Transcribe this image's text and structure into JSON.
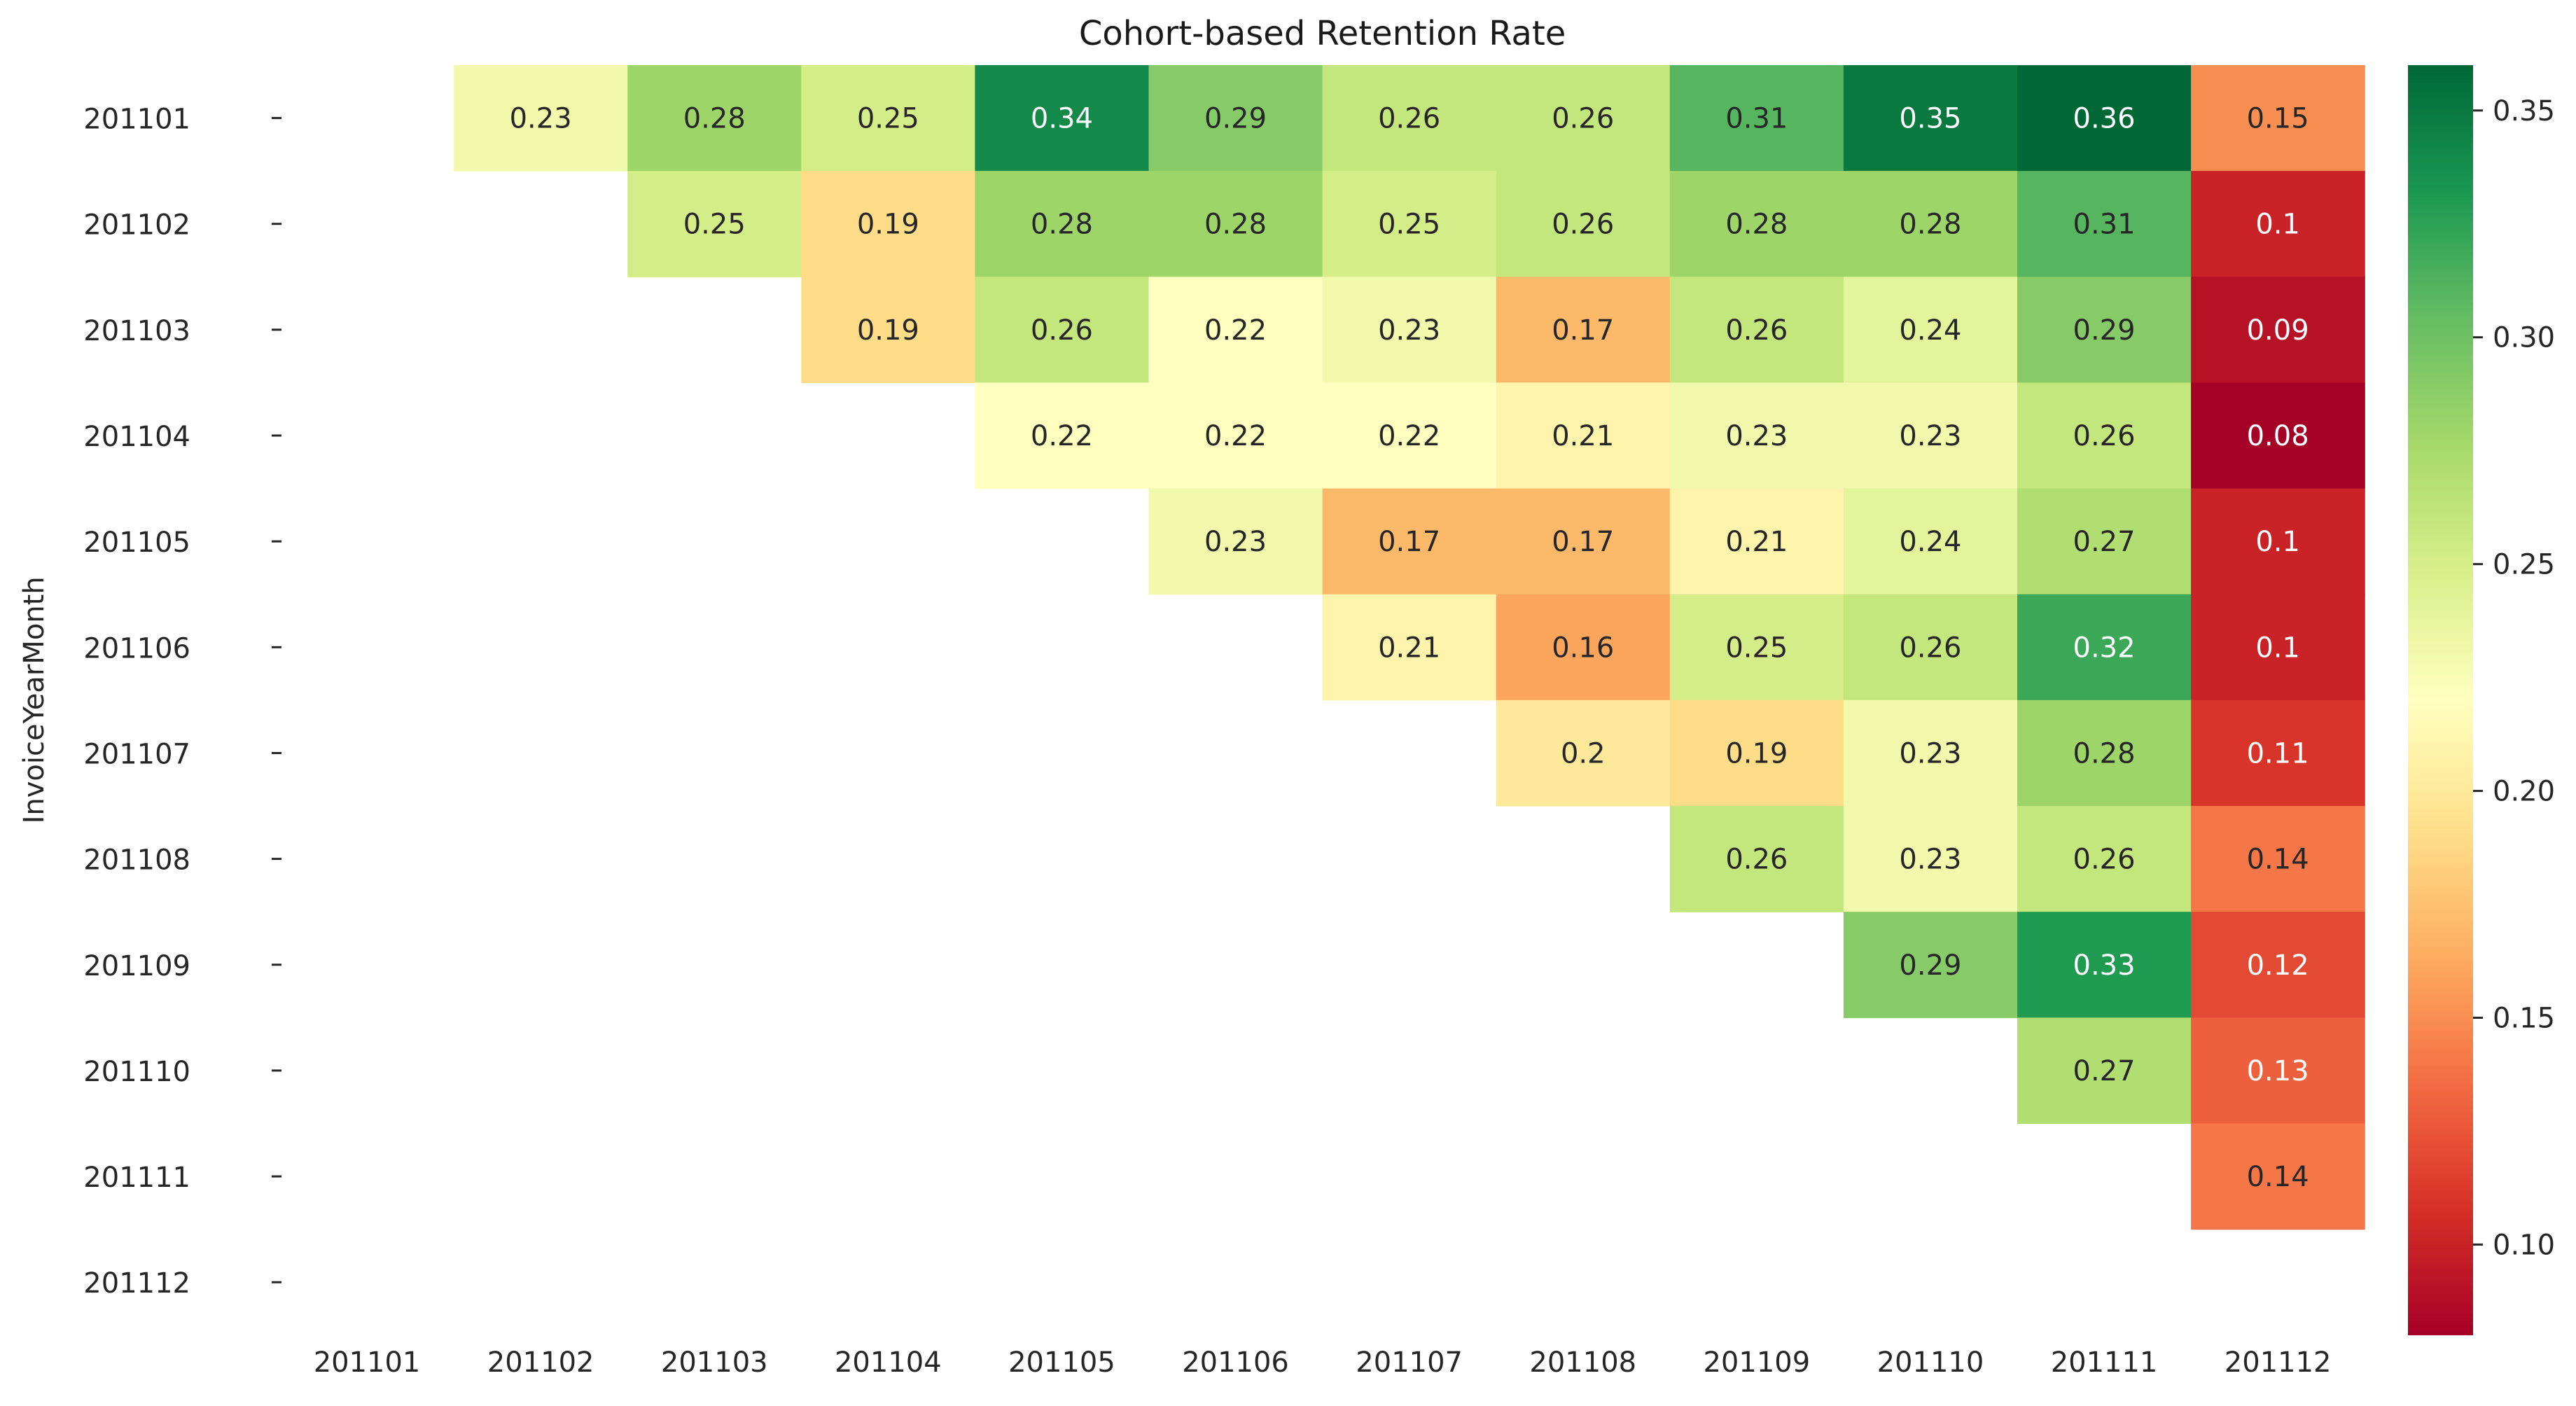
{
  "chart_data": {
    "type": "heatmap",
    "title": "Cohort-based Retention Rate",
    "ylabel": "InvoiceYearMonth",
    "xlabel": "",
    "x_categories": [
      "201101",
      "201102",
      "201103",
      "201104",
      "201105",
      "201106",
      "201107",
      "201108",
      "201109",
      "201110",
      "201111",
      "201112"
    ],
    "y_categories": [
      "201101",
      "201102",
      "201103",
      "201104",
      "201105",
      "201106",
      "201107",
      "201108",
      "201109",
      "201110",
      "201111",
      "201112"
    ],
    "values": [
      [
        null,
        0.23,
        0.28,
        0.25,
        0.34,
        0.29,
        0.26,
        0.26,
        0.31,
        0.35,
        0.36,
        0.15
      ],
      [
        null,
        null,
        0.25,
        0.19,
        0.28,
        0.28,
        0.25,
        0.26,
        0.28,
        0.28,
        0.31,
        0.1
      ],
      [
        null,
        null,
        null,
        0.19,
        0.26,
        0.22,
        0.23,
        0.17,
        0.26,
        0.24,
        0.29,
        0.09
      ],
      [
        null,
        null,
        null,
        null,
        0.22,
        0.22,
        0.22,
        0.21,
        0.23,
        0.23,
        0.26,
        0.08
      ],
      [
        null,
        null,
        null,
        null,
        null,
        0.23,
        0.17,
        0.17,
        0.21,
        0.24,
        0.27,
        0.1
      ],
      [
        null,
        null,
        null,
        null,
        null,
        null,
        0.21,
        0.16,
        0.25,
        0.26,
        0.32,
        0.1
      ],
      [
        null,
        null,
        null,
        null,
        null,
        null,
        null,
        0.2,
        0.19,
        0.23,
        0.28,
        0.11
      ],
      [
        null,
        null,
        null,
        null,
        null,
        null,
        null,
        null,
        0.26,
        0.23,
        0.26,
        0.14
      ],
      [
        null,
        null,
        null,
        null,
        null,
        null,
        null,
        null,
        null,
        0.29,
        0.33,
        0.12
      ],
      [
        null,
        null,
        null,
        null,
        null,
        null,
        null,
        null,
        null,
        null,
        0.27,
        0.13
      ],
      [
        null,
        null,
        null,
        null,
        null,
        null,
        null,
        null,
        null,
        null,
        null,
        0.14
      ],
      [
        null,
        null,
        null,
        null,
        null,
        null,
        null,
        null,
        null,
        null,
        null,
        null
      ]
    ],
    "colormap": "RdYlGn",
    "color_range": [
      0.08,
      0.36
    ],
    "colorbar": {
      "ticks": [
        0.1,
        0.15,
        0.2,
        0.25,
        0.3,
        0.35
      ],
      "tick_labels": [
        "0.10",
        "0.15",
        "0.20",
        "0.25",
        "0.30",
        "0.35"
      ]
    },
    "annotations": true,
    "grid": false
  }
}
